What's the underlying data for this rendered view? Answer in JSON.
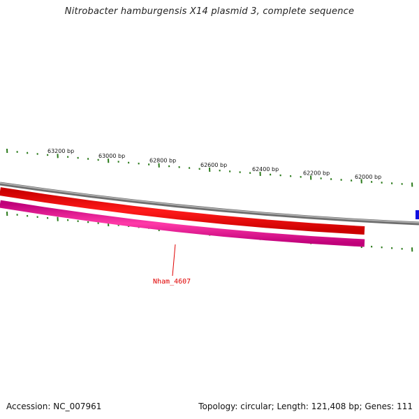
{
  "map": {
    "title": "Nitrobacter hamburgensis X14 plasmid 3, complete sequence",
    "accession": "Accession: NC_007961",
    "summary": "Topology: circular; Length: 121,408 bp; Genes: 111"
  },
  "scale": {
    "tick_color": "#2a7a1a",
    "labels": [
      "63200 bp",
      "63000 bp",
      "62800 bp",
      "62600 bp",
      "62400 bp",
      "62200 bp",
      "62000 bp"
    ]
  },
  "genes": [
    {
      "label": "Nham_4607",
      "strand": "forward",
      "color": "#ff0000",
      "label_color": "#e00000"
    },
    {
      "label": "",
      "strand": "reverse",
      "color": "#ff1493"
    }
  ],
  "backbone": {
    "color": "#888888"
  },
  "edge_feature": {
    "color": "#1010e0"
  }
}
